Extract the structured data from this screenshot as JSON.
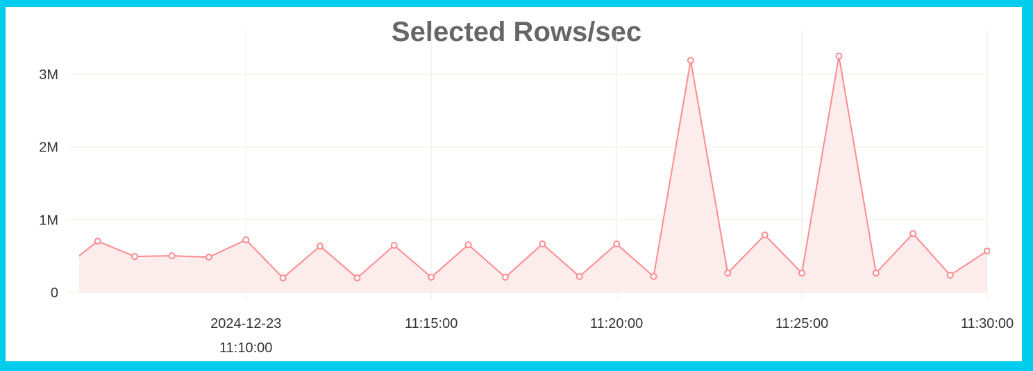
{
  "chart_data": {
    "type": "area",
    "title": "Selected Rows/sec",
    "xlabel": "",
    "ylabel": "",
    "x_range": [
      "11:05:30",
      "11:30:00"
    ],
    "ylim": [
      0,
      3600000
    ],
    "grid": true,
    "y_ticks": [
      {
        "value": 0,
        "label": "0"
      },
      {
        "value": 1000000,
        "label": "1M"
      },
      {
        "value": 2000000,
        "label": "2M"
      },
      {
        "value": 3000000,
        "label": "3M"
      }
    ],
    "x_ticks": [
      {
        "time": "11:10:00",
        "label": [
          "2024-12-23",
          "11:10:00"
        ]
      },
      {
        "time": "11:15:00",
        "label": [
          "11:15:00"
        ]
      },
      {
        "time": "11:20:00",
        "label": [
          "11:20:00"
        ]
      },
      {
        "time": "11:25:00",
        "label": [
          "11:25:00"
        ]
      },
      {
        "time": "11:30:00",
        "label": [
          "11:30:00"
        ]
      }
    ],
    "series": [
      {
        "color": "#FF8A8F",
        "fill": "#FDECEC",
        "points": [
          {
            "x": "11:05:00",
            "y": 305000
          },
          {
            "x": "11:06:00",
            "y": 705000
          },
          {
            "x": "11:07:00",
            "y": 495000
          },
          {
            "x": "11:08:00",
            "y": 505000
          },
          {
            "x": "11:09:00",
            "y": 486000
          },
          {
            "x": "11:10:00",
            "y": 724000
          },
          {
            "x": "11:11:00",
            "y": 200000
          },
          {
            "x": "11:12:00",
            "y": 638000
          },
          {
            "x": "11:13:00",
            "y": 200000
          },
          {
            "x": "11:14:00",
            "y": 648000
          },
          {
            "x": "11:15:00",
            "y": 210000
          },
          {
            "x": "11:16:00",
            "y": 657000
          },
          {
            "x": "11:17:00",
            "y": 210000
          },
          {
            "x": "11:18:00",
            "y": 667000
          },
          {
            "x": "11:19:00",
            "y": 220000
          },
          {
            "x": "11:20:00",
            "y": 667000
          },
          {
            "x": "11:21:00",
            "y": 220000
          },
          {
            "x": "11:22:00",
            "y": 3190000
          },
          {
            "x": "11:23:00",
            "y": 267000
          },
          {
            "x": "11:24:00",
            "y": 790000
          },
          {
            "x": "11:25:00",
            "y": 267000
          },
          {
            "x": "11:26:00",
            "y": 3250000
          },
          {
            "x": "11:27:00",
            "y": 267000
          },
          {
            "x": "11:28:00",
            "y": 810000
          },
          {
            "x": "11:29:00",
            "y": 238000
          },
          {
            "x": "11:30:00",
            "y": 571000
          }
        ]
      }
    ]
  }
}
